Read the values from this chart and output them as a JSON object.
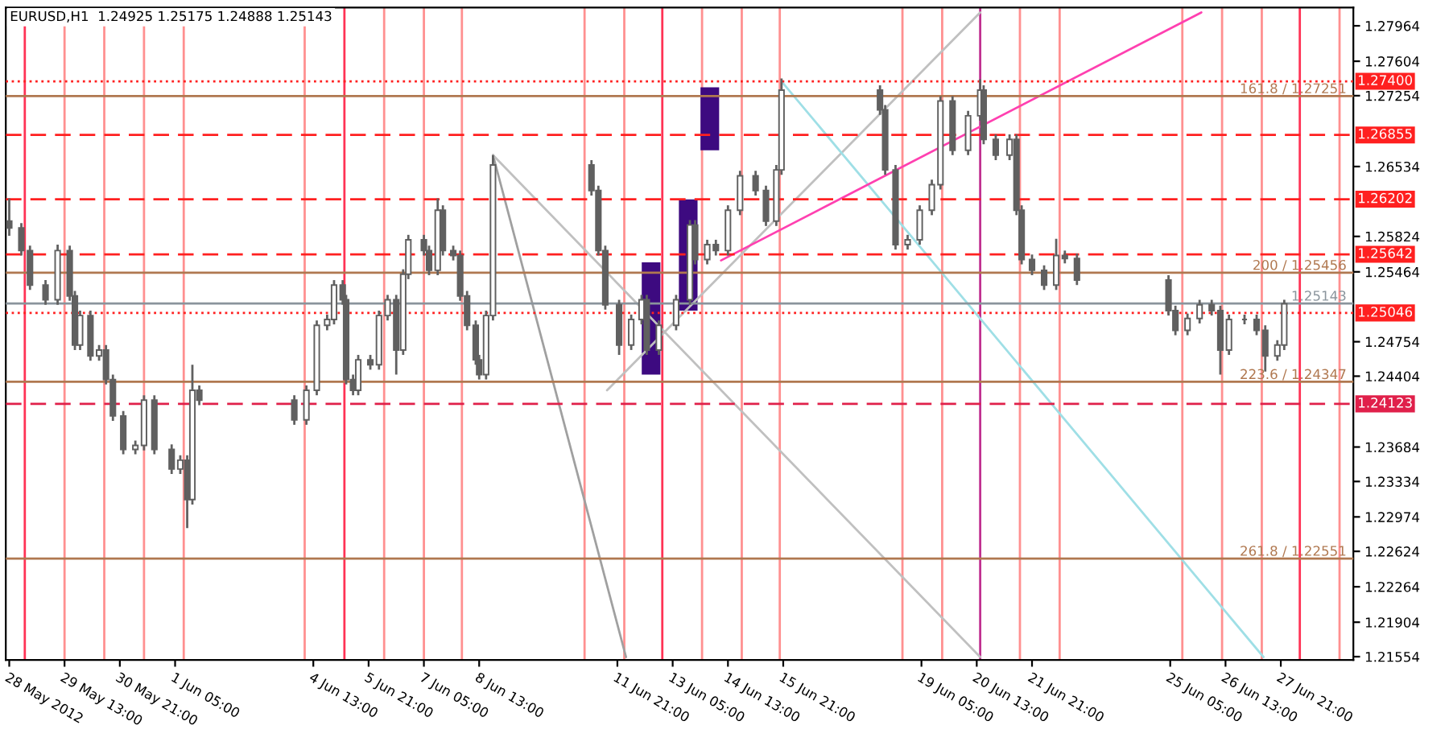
{
  "chart_data": {
    "type": "candlestick",
    "title": "EURUSD,H1  1.24925 1.25175 1.24888 1.25143",
    "x": [
      "2012-05-28T05:00",
      "2012-05-28T12:00",
      "2012-05-28T17:00",
      "2012-05-29T02:00",
      "2012-05-29T09:00",
      "2012-05-29T16:00",
      "2012-05-29T19:00",
      "2012-05-29T22:00",
      "2012-05-30T04:00",
      "2012-05-30T09:00",
      "2012-05-30T13:00",
      "2012-05-30T17:00",
      "2012-05-30T23:00",
      "2012-05-31T06:00",
      "2012-05-31T11:00",
      "2012-05-31T17:00",
      "2012-06-01T03:00",
      "2012-06-01T08:00",
      "2012-06-01T12:00",
      "2012-06-01T15:00",
      "2012-06-01T19:00",
      "2012-06-04T02:00",
      "2012-06-04T09:00",
      "2012-06-04T15:00",
      "2012-06-04T21:00",
      "2012-06-05T01:00",
      "2012-06-05T06:00",
      "2012-06-05T08:00",
      "2012-06-05T12:00",
      "2012-06-05T15:00",
      "2012-06-05T22:00",
      "2012-06-06T03:00",
      "2012-06-06T08:00",
      "2012-06-06T13:00",
      "2012-06-06T17:00",
      "2012-06-06T20:00",
      "2012-06-07T05:00",
      "2012-06-07T08:00",
      "2012-06-07T13:00",
      "2012-06-07T16:00",
      "2012-06-07T22:00",
      "2012-06-08T02:00",
      "2012-06-08T06:00",
      "2012-06-08T11:00",
      "2012-06-08T13:00",
      "2012-06-08T17:00",
      "2012-06-08T21:00",
      "2012-06-11T06:00",
      "2012-06-11T10:00",
      "2012-06-11T14:00",
      "2012-06-11T22:00",
      "2012-06-12T05:00",
      "2012-06-12T11:00",
      "2012-06-12T14:00",
      "2012-06-12T21:00",
      "2012-06-13T07:00",
      "2012-06-13T15:00",
      "2012-06-13T18:00",
      "2012-06-14T01:00",
      "2012-06-14T06:00",
      "2012-06-14T13:00",
      "2012-06-14T20:00",
      "2012-06-15T05:00",
      "2012-06-15T11:00",
      "2012-06-15T17:00",
      "2012-06-15T20:00",
      "2012-06-18T05:00",
      "2012-06-18T08:00",
      "2012-06-18T14:00",
      "2012-06-18T21:00",
      "2012-06-19T04:00",
      "2012-06-19T11:00",
      "2012-06-19T16:00",
      "2012-06-19T23:00",
      "2012-06-20T08:00",
      "2012-06-20T15:00",
      "2012-06-20T17:00",
      "2012-06-21T00:00",
      "2012-06-21T08:00",
      "2012-06-21T12:00",
      "2012-06-21T15:00",
      "2012-06-21T21:00",
      "2012-06-22T04:00",
      "2012-06-22T11:00",
      "2012-06-22T16:00",
      "2012-06-22T23:00",
      "2012-06-25T04:00",
      "2012-06-25T08:00",
      "2012-06-25T15:00",
      "2012-06-25T22:00",
      "2012-06-26T05:00",
      "2012-06-26T10:00",
      "2012-06-26T15:00",
      "2012-06-27T00:00",
      "2012-06-27T07:00",
      "2012-06-27T12:00",
      "2012-06-27T19:00",
      "2012-06-27T23:00"
    ],
    "ohlc": [
      [
        1.2598,
        1.2621,
        1.2583,
        1.2591
      ],
      [
        1.2591,
        1.2596,
        1.2563,
        1.2568
      ],
      [
        1.2568,
        1.2573,
        1.2528,
        1.2533
      ],
      [
        1.2533,
        1.2538,
        1.2513,
        1.2518
      ],
      [
        1.2518,
        1.2574,
        1.2513,
        1.2568
      ],
      [
        1.2568,
        1.2573,
        1.2517,
        1.2522
      ],
      [
        1.2522,
        1.2527,
        1.2467,
        1.2472
      ],
      [
        1.2472,
        1.2507,
        1.2467,
        1.2502
      ],
      [
        1.2502,
        1.2507,
        1.2456,
        1.2461
      ],
      [
        1.2461,
        1.2472,
        1.2456,
        1.2467
      ],
      [
        1.2467,
        1.2472,
        1.2432,
        1.2437
      ],
      [
        1.2437,
        1.2442,
        1.2395,
        1.24
      ],
      [
        1.24,
        1.2405,
        1.2361,
        1.2366
      ],
      [
        1.2366,
        1.2375,
        1.2361,
        1.237
      ],
      [
        1.237,
        1.2421,
        1.2365,
        1.2416
      ],
      [
        1.2416,
        1.2421,
        1.2361,
        1.2366
      ],
      [
        1.2366,
        1.2371,
        1.2341,
        1.2346
      ],
      [
        1.2346,
        1.236,
        1.2341,
        1.2355
      ],
      [
        1.2355,
        1.236,
        1.2286,
        1.2315
      ],
      [
        1.2315,
        1.2452,
        1.231,
        1.2426
      ],
      [
        1.2426,
        1.2431,
        1.2411,
        1.2416
      ],
      [
        1.2416,
        1.2421,
        1.2391,
        1.2396
      ],
      [
        1.2396,
        1.2431,
        1.2391,
        1.2426
      ],
      [
        1.2426,
        1.2497,
        1.2421,
        1.2492
      ],
      [
        1.2492,
        1.2503,
        1.2487,
        1.2498
      ],
      [
        1.2498,
        1.2538,
        1.2493,
        1.2533
      ],
      [
        1.2533,
        1.2538,
        1.2513,
        1.2518
      ],
      [
        1.2518,
        1.2523,
        1.2432,
        1.2437
      ],
      [
        1.2437,
        1.2442,
        1.2421,
        1.2426
      ],
      [
        1.2426,
        1.2462,
        1.2421,
        1.2457
      ],
      [
        1.2457,
        1.2462,
        1.2447,
        1.2452
      ],
      [
        1.2452,
        1.2507,
        1.2447,
        1.2502
      ],
      [
        1.2502,
        1.2523,
        1.2497,
        1.2518
      ],
      [
        1.2518,
        1.2523,
        1.2442,
        1.2467
      ],
      [
        1.2467,
        1.2549,
        1.2462,
        1.2544
      ],
      [
        1.2544,
        1.2584,
        1.2539,
        1.2579
      ],
      [
        1.2579,
        1.2584,
        1.2563,
        1.2568
      ],
      [
        1.2568,
        1.2573,
        1.2543,
        1.2548
      ],
      [
        1.2548,
        1.2621,
        1.2543,
        1.2609
      ],
      [
        1.2609,
        1.2614,
        1.2563,
        1.2568
      ],
      [
        1.2568,
        1.2573,
        1.2558,
        1.2563
      ],
      [
        1.2563,
        1.2568,
        1.2517,
        1.2522
      ],
      [
        1.2522,
        1.2527,
        1.2487,
        1.2492
      ],
      [
        1.2492,
        1.2497,
        1.2452,
        1.2457
      ],
      [
        1.2457,
        1.2462,
        1.2437,
        1.2442
      ],
      [
        1.2442,
        1.2507,
        1.2437,
        1.2502
      ],
      [
        1.2502,
        1.2665,
        1.2497,
        1.2655
      ],
      [
        1.2655,
        1.266,
        1.2624,
        1.2629
      ],
      [
        1.2629,
        1.2634,
        1.2563,
        1.2568
      ],
      [
        1.2568,
        1.2573,
        1.2508,
        1.2513
      ],
      [
        1.2513,
        1.2518,
        1.2462,
        1.2472
      ],
      [
        1.2472,
        1.2503,
        1.2467,
        1.2498
      ],
      [
        1.2498,
        1.2523,
        1.2493,
        1.2518
      ],
      [
        1.2518,
        1.2523,
        1.2462,
        1.2467
      ],
      [
        1.2467,
        1.2497,
        1.2462,
        1.2492
      ],
      [
        1.2492,
        1.2523,
        1.2487,
        1.2518
      ],
      [
        1.2518,
        1.2599,
        1.2513,
        1.2594
      ],
      [
        1.2594,
        1.2599,
        1.2554,
        1.2559
      ],
      [
        1.2559,
        1.2579,
        1.2554,
        1.2574
      ],
      [
        1.2574,
        1.2579,
        1.2563,
        1.2568
      ],
      [
        1.2568,
        1.2614,
        1.2563,
        1.2609
      ],
      [
        1.2609,
        1.2649,
        1.2604,
        1.2644
      ],
      [
        1.2644,
        1.2649,
        1.2624,
        1.2629
      ],
      [
        1.2629,
        1.2634,
        1.2593,
        1.2598
      ],
      [
        1.2598,
        1.2655,
        1.2593,
        1.265
      ],
      [
        1.265,
        1.2743,
        1.2645,
        1.2731
      ],
      [
        1.2731,
        1.2736,
        1.2706,
        1.2711
      ],
      [
        1.2711,
        1.2716,
        1.2645,
        1.265
      ],
      [
        1.265,
        1.2655,
        1.2569,
        1.2574
      ],
      [
        1.2574,
        1.2584,
        1.2569,
        1.2579
      ],
      [
        1.2579,
        1.2614,
        1.2574,
        1.2609
      ],
      [
        1.2609,
        1.264,
        1.2604,
        1.2635
      ],
      [
        1.2635,
        1.2725,
        1.263,
        1.272
      ],
      [
        1.272,
        1.2725,
        1.2665,
        1.267
      ],
      [
        1.267,
        1.271,
        1.2665,
        1.2705
      ],
      [
        1.2705,
        1.2742,
        1.27,
        1.2731
      ],
      [
        1.2731,
        1.2736,
        1.2676,
        1.2681
      ],
      [
        1.2681,
        1.2686,
        1.266,
        1.2665
      ],
      [
        1.2665,
        1.2686,
        1.266,
        1.2681
      ],
      [
        1.2681,
        1.2686,
        1.2604,
        1.2609
      ],
      [
        1.2609,
        1.2614,
        1.2554,
        1.2559
      ],
      [
        1.2559,
        1.2564,
        1.2543,
        1.2548
      ],
      [
        1.2548,
        1.2553,
        1.2528,
        1.2533
      ],
      [
        1.2533,
        1.258,
        1.2528,
        1.2563
      ],
      [
        1.2563,
        1.2568,
        1.2555,
        1.256
      ],
      [
        1.256,
        1.2565,
        1.2533,
        1.2538
      ],
      [
        1.2538,
        1.2543,
        1.2502,
        1.2507
      ],
      [
        1.2507,
        1.2512,
        1.2482,
        1.2487
      ],
      [
        1.2487,
        1.2504,
        1.2482,
        1.2499
      ],
      [
        1.2499,
        1.2518,
        1.2494,
        1.2513
      ],
      [
        1.2513,
        1.2518,
        1.2502,
        1.2507
      ],
      [
        1.2507,
        1.2512,
        1.2442,
        1.2467
      ],
      [
        1.2467,
        1.2503,
        1.2462,
        1.2498
      ],
      [
        1.2498,
        1.2503,
        1.2493,
        1.2498
      ],
      [
        1.2498,
        1.2503,
        1.2482,
        1.2487
      ],
      [
        1.2487,
        1.2492,
        1.2445,
        1.2461
      ],
      [
        1.2461,
        1.2477,
        1.2456,
        1.2472
      ],
      [
        1.2472,
        1.2518,
        1.2467,
        1.2514
      ]
    ],
    "color": "#606060",
    "series": [
      {
        "type": "bar",
        "x": [
          "2012-06-12T16:30",
          "2012-06-13T14:00",
          "2012-06-14T02:30"
        ],
        "base": [
          1.2442,
          1.2507,
          1.267
        ],
        "values": [
          0.0114,
          0.0113,
          0.0064
        ],
        "color": "#3d0a80"
      },
      {
        "type": "line",
        "x": [
          "2012-06-08T21:00",
          "2012-06-12T02:00"
        ],
        "values": [
          1.2665,
          1.2155
        ],
        "color": "#a0a0a0"
      },
      {
        "type": "line",
        "x": [
          "2012-06-08T21:00",
          "2012-06-20T15:00"
        ],
        "values": [
          1.2665,
          1.2155
        ],
        "color": "#c0c0c0"
      },
      {
        "type": "line",
        "x": [
          "2012-06-11T15:00",
          "2012-06-20T15:00"
        ],
        "values": [
          1.2426,
          1.281
        ],
        "color": "#c0c0c0"
      },
      {
        "type": "line",
        "x": [
          "2012-06-15T20:00",
          "2012-06-27T11:00"
        ],
        "values": [
          1.274,
          1.2155
        ],
        "color": "#9fdfe6"
      },
      {
        "type": "line",
        "x": [
          "2012-06-14T09:00",
          "2012-06-25T23:00"
        ],
        "values": [
          1.2558,
          1.281
        ],
        "color": "#ff40b0"
      }
    ],
    "xlim": [
      "2012-05-28T03:00",
      "2012-06-29T15:00"
    ],
    "ylim": [
      1.2152,
      1.2815
    ],
    "xticks": [
      {
        "value": "2012-05-28T05:00",
        "label": "28 May 2012"
      },
      {
        "value": "2012-05-29T13:00",
        "label": "29 May 13:00"
      },
      {
        "value": "2012-05-30T21:00",
        "label": "30 May 21:00"
      },
      {
        "value": "2012-06-01T05:00",
        "label": "1 Jun 05:00"
      },
      {
        "value": "2012-06-04T13:00",
        "label": "4 Jun 13:00"
      },
      {
        "value": "2012-06-05T21:00",
        "label": "5 Jun 21:00"
      },
      {
        "value": "2012-06-07T05:00",
        "label": "7 Jun 05:00"
      },
      {
        "value": "2012-06-08T13:00",
        "label": "8 Jun 13:00"
      },
      {
        "value": "2012-06-11T21:00",
        "label": "11 Jun 21:00"
      },
      {
        "value": "2012-06-13T05:00",
        "label": "13 Jun 05:00"
      },
      {
        "value": "2012-06-14T13:00",
        "label": "14 Jun 13:00"
      },
      {
        "value": "2012-06-15T21:00",
        "label": "15 Jun 21:00"
      },
      {
        "value": "2012-06-19T05:00",
        "label": "19 Jun 05:00"
      },
      {
        "value": "2012-06-20T13:00",
        "label": "20 Jun 13:00"
      },
      {
        "value": "2012-06-21T21:00",
        "label": "21 Jun 21:00"
      },
      {
        "value": "2012-06-25T05:00",
        "label": "25 Jun 05:00"
      },
      {
        "value": "2012-06-26T13:00",
        "label": "26 Jun 13:00"
      },
      {
        "value": "2012-06-27T21:00",
        "label": "27 Jun 21:00"
      }
    ],
    "yticks": [
      1.27964,
      1.27604,
      1.27254,
      1.26534,
      1.25824,
      1.25464,
      1.24754,
      1.24404,
      1.23684,
      1.23334,
      1.22974,
      1.22624,
      1.22264,
      1.21904,
      1.21554
    ],
    "ref_lines": [
      {
        "axis": "y",
        "value": 1.274,
        "label": "1.27400",
        "color": "#ff2020",
        "line_style": "dotted"
      },
      {
        "axis": "y",
        "value": 1.26855,
        "label": "1.26855",
        "color": "#ff2020",
        "line_style": "dashed"
      },
      {
        "axis": "y",
        "value": 1.26202,
        "label": "1.26202",
        "color": "#ff2020",
        "line_style": "dashed"
      },
      {
        "axis": "y",
        "value": 1.25642,
        "label": "1.25642",
        "color": "#ff2020",
        "line_style": "dashed"
      },
      {
        "axis": "y",
        "value": 1.25046,
        "label": "1.25046",
        "color": "#ff2020",
        "line_style": "dotted"
      },
      {
        "axis": "y",
        "value": 1.24123,
        "label": "1.24123",
        "color": "#e0204a",
        "line_style": "dashed"
      },
      {
        "axis": "y",
        "value": 1.27251,
        "label": "161.8 / 1.27251",
        "color": "#b07850",
        "line_style": "solid"
      },
      {
        "axis": "y",
        "value": 1.25456,
        "label": "200 / 1.25456",
        "color": "#b07850",
        "line_style": "solid"
      },
      {
        "axis": "y",
        "value": 1.24347,
        "label": "223.6 / 1.24347",
        "color": "#b07850",
        "line_style": "solid"
      },
      {
        "axis": "y",
        "value": 1.22551,
        "label": "261.8 / 1.22551",
        "color": "#b07850",
        "line_style": "solid"
      },
      {
        "axis": "y",
        "value": 1.25143,
        "label": "1.25143",
        "color": "#8a949c",
        "line_style": "solid"
      },
      {
        "axis": "x",
        "value": "2012-05-28T14:00",
        "color": "#ff3355"
      },
      {
        "axis": "x",
        "value": "2012-05-29T13:00",
        "color": "#ff9090"
      },
      {
        "axis": "x",
        "value": "2012-05-30T12:00",
        "color": "#ff9090"
      },
      {
        "axis": "x",
        "value": "2012-05-31T11:00",
        "color": "#ff9090"
      },
      {
        "axis": "x",
        "value": "2012-06-01T10:00",
        "color": "#ff9090"
      },
      {
        "axis": "x",
        "value": "2012-06-04T08:00",
        "color": "#ff9090"
      },
      {
        "axis": "x",
        "value": "2012-06-05T07:00",
        "color": "#ff3355"
      },
      {
        "axis": "x",
        "value": "2012-06-06T06:00",
        "color": "#ff9090"
      },
      {
        "axis": "x",
        "value": "2012-06-07T05:00",
        "color": "#ff9090"
      },
      {
        "axis": "x",
        "value": "2012-06-08T03:00",
        "color": "#ff9090"
      },
      {
        "axis": "x",
        "value": "2012-06-11T02:00",
        "color": "#ff9090"
      },
      {
        "axis": "x",
        "value": "2012-06-12T01:00",
        "color": "#ff9090"
      },
      {
        "axis": "x",
        "value": "2012-06-12T23:00",
        "color": "#ff3355"
      },
      {
        "axis": "x",
        "value": "2012-06-13T22:00",
        "color": "#ff9090"
      },
      {
        "axis": "x",
        "value": "2012-06-14T21:00",
        "color": "#ff9090"
      },
      {
        "axis": "x",
        "value": "2012-06-15T19:00",
        "color": "#ff9090"
      },
      {
        "axis": "x",
        "value": "2012-06-18T18:00",
        "color": "#ff9090"
      },
      {
        "axis": "x",
        "value": "2012-06-19T17:00",
        "color": "#ff9090"
      },
      {
        "axis": "x",
        "value": "2012-06-20T15:00",
        "color": "#c03090"
      },
      {
        "axis": "x",
        "value": "2012-06-21T14:00",
        "color": "#ff9090"
      },
      {
        "axis": "x",
        "value": "2012-06-22T13:00",
        "color": "#ff9090"
      },
      {
        "axis": "x",
        "value": "2012-06-25T12:00",
        "color": "#ff9090"
      },
      {
        "axis": "x",
        "value": "2012-06-26T11:00",
        "color": "#ff9090"
      },
      {
        "axis": "x",
        "value": "2012-06-27T10:00",
        "color": "#ff9090"
      },
      {
        "axis": "x",
        "value": "2012-06-28T08:00",
        "color": "#ff3355"
      },
      {
        "axis": "x",
        "value": "2012-06-29T07:00",
        "color": "#ff9090"
      }
    ],
    "grid": false,
    "legend": false
  }
}
